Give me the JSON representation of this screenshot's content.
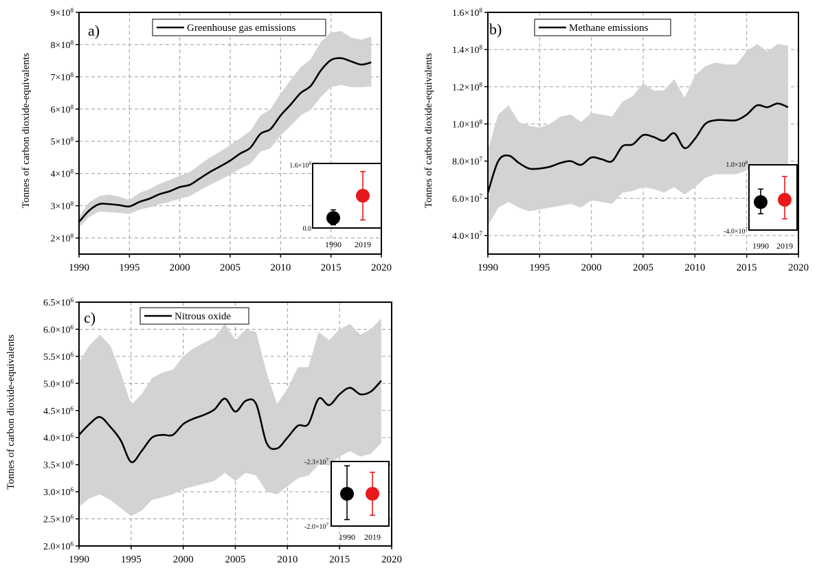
{
  "figure": {
    "background": "#ffffff",
    "band_color": "#d3d3d3",
    "line_color": "#000000",
    "inset_color_1990": "#000000",
    "inset_color_2019": "#e8191b"
  },
  "chart_data": [
    {
      "id": "a",
      "type": "line",
      "panel_label": "a)",
      "legend": "Greenhouse gas emissions",
      "legend_position": "top",
      "ylabel": "Tonnes of carbon dioxide-equivalents",
      "xlabel": "",
      "xlim": [
        1990,
        2020
      ],
      "ylim": [
        150000000,
        900000000
      ],
      "grid": true,
      "x_ticks": [
        1990,
        1995,
        2000,
        2005,
        2010,
        2015,
        2020
      ],
      "x_tick_labels": [
        "1990",
        "1995",
        "2000",
        "2005",
        "2010",
        "2015",
        "2020"
      ],
      "y_ticks": [
        200000000,
        300000000,
        400000000,
        500000000,
        600000000,
        700000000,
        800000000,
        900000000
      ],
      "y_tick_labels": [
        {
          "mant": "2×10",
          "exp": "8"
        },
        {
          "mant": "3×10",
          "exp": "8"
        },
        {
          "mant": "4×10",
          "exp": "8"
        },
        {
          "mant": "5×10",
          "exp": "8"
        },
        {
          "mant": "6×10",
          "exp": "8"
        },
        {
          "mant": "7×10",
          "exp": "8"
        },
        {
          "mant": "8×10",
          "exp": "8"
        },
        {
          "mant": "9×10",
          "exp": "8"
        }
      ],
      "x": [
        1990,
        1991,
        1992,
        1993,
        1994,
        1995,
        1996,
        1997,
        1998,
        1999,
        2000,
        2001,
        2002,
        2003,
        2004,
        2005,
        2006,
        2007,
        2008,
        2009,
        2010,
        2011,
        2012,
        2013,
        2014,
        2015,
        2016,
        2017,
        2018,
        2019
      ],
      "mean": [
        250,
        285,
        305,
        305,
        302,
        298,
        312,
        322,
        336,
        345,
        358,
        365,
        385,
        405,
        422,
        440,
        462,
        480,
        523,
        538,
        580,
        614,
        650,
        672,
        720,
        752,
        758,
        748,
        738,
        745
      ],
      "upper": [
        268,
        310,
        330,
        335,
        328,
        318,
        340,
        352,
        368,
        380,
        393,
        405,
        428,
        450,
        468,
        488,
        510,
        532,
        580,
        600,
        648,
        690,
        730,
        755,
        808,
        838,
        842,
        822,
        815,
        825
      ],
      "lower": [
        232,
        265,
        282,
        280,
        278,
        275,
        288,
        295,
        305,
        312,
        322,
        330,
        348,
        365,
        380,
        396,
        415,
        430,
        468,
        478,
        518,
        548,
        580,
        598,
        638,
        668,
        675,
        668,
        668,
        670
      ],
      "value_scale": 1000000,
      "inset": {
        "ylim": [
          0,
          160000000
        ],
        "y_tick_labels": [
          {
            "v": 0,
            "text": "0.0",
            "exp": ""
          },
          {
            "v": 160000000,
            "text": "1.6×10",
            "exp": "8"
          }
        ],
        "categories": [
          "1990",
          "2019"
        ],
        "values": [
          25000000,
          80000000
        ],
        "err_low": [
          8000000,
          20000000
        ],
        "err_high": [
          45000000,
          140000000
        ]
      }
    },
    {
      "id": "b",
      "type": "line",
      "panel_label": "b)",
      "legend": "Methane emissions",
      "legend_position": "top",
      "ylabel": "Tonnes of carbon dioxide-equivalents",
      "xlabel": "",
      "xlim": [
        1990,
        2020
      ],
      "ylim": [
        30000000,
        160000000
      ],
      "grid": true,
      "x_ticks": [
        1990,
        1995,
        2000,
        2005,
        2010,
        2015,
        2020
      ],
      "x_tick_labels": [
        "1990",
        "1995",
        "2000",
        "2005",
        "2010",
        "2015",
        "2020"
      ],
      "y_ticks": [
        40000000,
        60000000,
        80000000,
        100000000,
        120000000,
        140000000,
        160000000
      ],
      "y_tick_labels": [
        {
          "mant": "4.0×10",
          "exp": "7"
        },
        {
          "mant": "6.0×10",
          "exp": "7"
        },
        {
          "mant": "8.0×10",
          "exp": "7"
        },
        {
          "mant": "1.0×10",
          "exp": "8"
        },
        {
          "mant": "1.2×10",
          "exp": "8"
        },
        {
          "mant": "1.4×10",
          "exp": "8"
        },
        {
          "mant": "1.6×10",
          "exp": "8"
        }
      ],
      "x": [
        1990,
        1991,
        1992,
        1993,
        1994,
        1995,
        1996,
        1997,
        1998,
        1999,
        2000,
        2001,
        2002,
        2003,
        2004,
        2005,
        2006,
        2007,
        2008,
        2009,
        2010,
        2011,
        2012,
        2013,
        2014,
        2015,
        2016,
        2017,
        2018,
        2019
      ],
      "mean": [
        63,
        80,
        83,
        79,
        76,
        76,
        77,
        79,
        80,
        78,
        82,
        81,
        80,
        88,
        89,
        94,
        93,
        91,
        95,
        87,
        92,
        100,
        102,
        102,
        102,
        105,
        110,
        109,
        111,
        109
      ],
      "upper": [
        86,
        105,
        110,
        101,
        99,
        98,
        100,
        104,
        105,
        101,
        106,
        105,
        104,
        112,
        115,
        122,
        118,
        118,
        124,
        114,
        126,
        131,
        133,
        132,
        132,
        139,
        143,
        139,
        143,
        142
      ],
      "lower": [
        45,
        55,
        58,
        55,
        53,
        54,
        55,
        56,
        57,
        55,
        59,
        58,
        57,
        63,
        64,
        66,
        65,
        63,
        66,
        62,
        66,
        71,
        73,
        73,
        73,
        75,
        77,
        76,
        78,
        77
      ],
      "value_scale": 1000000,
      "inset": {
        "ylim": [
          -40000000,
          100000000
        ],
        "y_tick_labels": [
          {
            "v": -40000000,
            "text": "-4.0×10",
            "exp": "7"
          },
          {
            "v": 100000000,
            "text": "1.0×10",
            "exp": "8"
          }
        ],
        "categories": [
          "1990",
          "2019"
        ],
        "values": [
          20000000,
          25000000
        ],
        "err_low": [
          -5000000,
          -16000000
        ],
        "err_high": [
          48000000,
          75000000
        ]
      }
    },
    {
      "id": "c",
      "type": "line",
      "panel_label": "c)",
      "legend": "Nitrous oxide",
      "legend_position": "top",
      "ylabel": "Tonnes of carbon dioxide-equivalents",
      "xlabel": "",
      "xlim": [
        1990,
        2020
      ],
      "ylim": [
        2000000,
        6500000
      ],
      "grid": true,
      "x_ticks": [
        1990,
        1995,
        2000,
        2005,
        2010,
        2015,
        2020
      ],
      "x_tick_labels": [
        "1990",
        "1995",
        "2000",
        "2005",
        "2010",
        "2015",
        "2020"
      ],
      "y_ticks": [
        2000000,
        2500000,
        3000000,
        3500000,
        4000000,
        4500000,
        5000000,
        5500000,
        6000000,
        6500000
      ],
      "y_tick_labels": [
        {
          "mant": "2.0×10",
          "exp": "6"
        },
        {
          "mant": "2.5×10",
          "exp": "6"
        },
        {
          "mant": "3.0×10",
          "exp": "6"
        },
        {
          "mant": "3.5×10",
          "exp": "6"
        },
        {
          "mant": "4.0×10",
          "exp": "6"
        },
        {
          "mant": "4.5×10",
          "exp": "6"
        },
        {
          "mant": "5.0×10",
          "exp": "6"
        },
        {
          "mant": "5.5×10",
          "exp": "6"
        },
        {
          "mant": "6.0×10",
          "exp": "6"
        },
        {
          "mant": "6.5×10",
          "exp": "6"
        }
      ],
      "x": [
        1990,
        1991,
        1992,
        1993,
        1994,
        1995,
        1996,
        1997,
        1998,
        1999,
        2000,
        2001,
        2002,
        2003,
        2004,
        2005,
        2006,
        2007,
        2008,
        2009,
        2010,
        2011,
        2012,
        2013,
        2014,
        2015,
        2016,
        2017,
        2018,
        2019
      ],
      "mean": [
        4.05,
        4.25,
        4.38,
        4.2,
        3.95,
        3.55,
        3.75,
        4.0,
        4.05,
        4.05,
        4.25,
        4.35,
        4.42,
        4.52,
        4.72,
        4.48,
        4.68,
        4.62,
        3.9,
        3.8,
        4.0,
        4.22,
        4.25,
        4.72,
        4.6,
        4.8,
        4.92,
        4.8,
        4.85,
        5.05
      ],
      "upper": [
        5.4,
        5.7,
        5.9,
        5.7,
        5.2,
        4.6,
        4.8,
        5.1,
        5.2,
        5.25,
        5.5,
        5.65,
        5.75,
        5.85,
        6.1,
        5.8,
        6.0,
        5.95,
        5.2,
        4.62,
        4.9,
        5.3,
        5.3,
        5.95,
        5.8,
        6.0,
        6.1,
        5.9,
        6.0,
        6.2
      ],
      "lower": [
        2.72,
        2.88,
        2.95,
        2.85,
        2.7,
        2.55,
        2.65,
        2.85,
        2.9,
        2.95,
        3.05,
        3.1,
        3.15,
        3.2,
        3.35,
        3.2,
        3.35,
        3.3,
        3.0,
        2.95,
        3.1,
        3.25,
        3.3,
        3.5,
        3.5,
        3.65,
        3.75,
        3.65,
        3.7,
        3.9
      ],
      "value_scale": 1000000,
      "inset": {
        "ylim": [
          -20000000,
          -23000000
        ],
        "y_tick_labels": [
          {
            "v": -20000000,
            "text": "-2.0×10",
            "exp": "7"
          },
          {
            "v": -23000000,
            "text": "-2.3×10",
            "exp": "7"
          }
        ],
        "categories": [
          "1990",
          "2019"
        ],
        "values": [
          -21500000,
          -21500000
        ],
        "err_low": [
          -20300000,
          -20500000
        ],
        "err_high": [
          -22800000,
          -22500000
        ]
      }
    }
  ]
}
